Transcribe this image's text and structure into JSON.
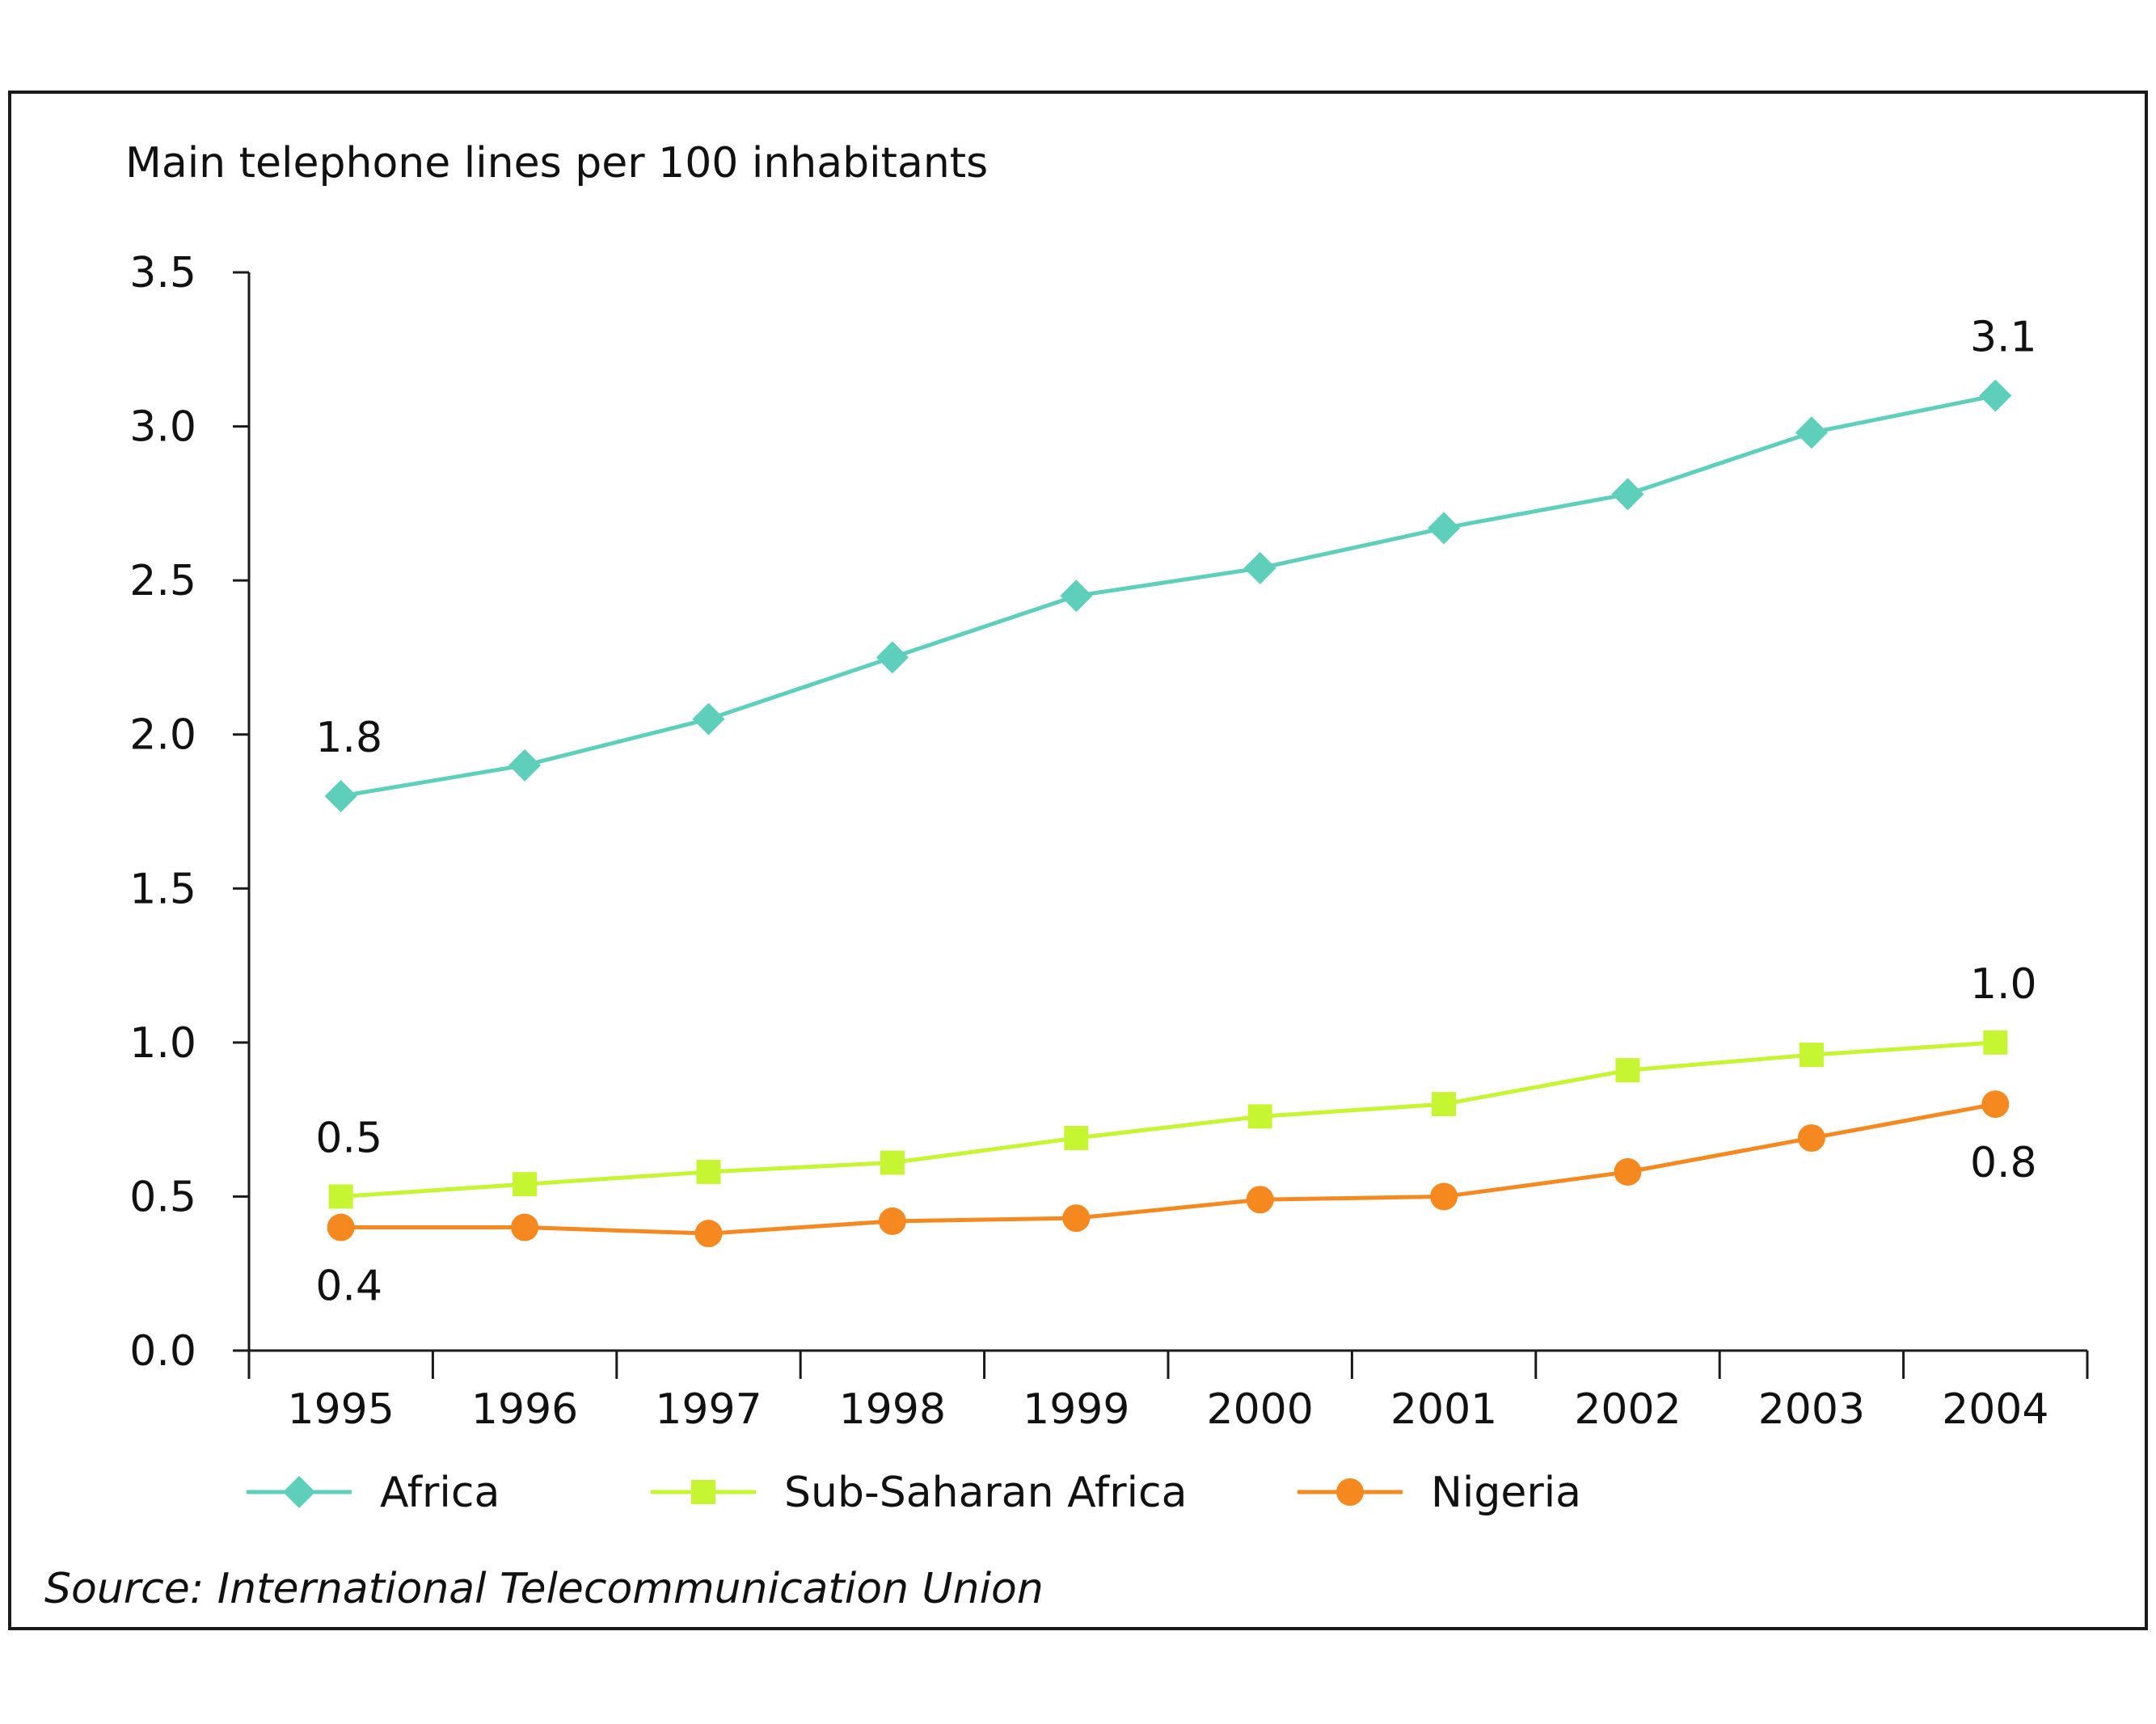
{
  "chart_data": {
    "type": "line",
    "ylabel": "Main telephone lines per 100 inhabitants",
    "source": "Source: International Telecommunication Union",
    "categories": [
      "1995",
      "1996",
      "1997",
      "1998",
      "1999",
      "2000",
      "2001",
      "2002",
      "2003",
      "2004"
    ],
    "ylim": [
      0,
      3.5
    ],
    "yticks": [
      "0.0",
      "0.5",
      "1.0",
      "1.5",
      "2.0",
      "2.5",
      "3.0",
      "3.5"
    ],
    "grid": false,
    "legend": "bottom",
    "series": [
      {
        "name": "Africa",
        "color": "#5ecfbb",
        "marker": "diamond",
        "values": [
          1.8,
          1.9,
          2.05,
          2.25,
          2.45,
          2.54,
          2.67,
          2.78,
          2.98,
          3.1
        ]
      },
      {
        "name": "Sub-Saharan Africa",
        "color": "#c6f532",
        "marker": "square",
        "values": [
          0.5,
          0.54,
          0.58,
          0.61,
          0.69,
          0.76,
          0.8,
          0.91,
          0.96,
          1.0
        ]
      },
      {
        "name": "Nigeria",
        "color": "#f5891f",
        "marker": "circle",
        "values": [
          0.4,
          0.4,
          0.38,
          0.42,
          0.43,
          0.49,
          0.5,
          0.58,
          0.69,
          0.8
        ]
      }
    ],
    "annotations": [
      {
        "text": "1.8",
        "series": 0,
        "index": 0,
        "position": "above"
      },
      {
        "text": "3.1",
        "series": 0,
        "index": 9,
        "position": "above"
      },
      {
        "text": "0.5",
        "series": 1,
        "index": 0,
        "position": "above"
      },
      {
        "text": "1.0",
        "series": 1,
        "index": 9,
        "position": "above"
      },
      {
        "text": "0.4",
        "series": 2,
        "index": 0,
        "position": "below"
      },
      {
        "text": "0.8",
        "series": 2,
        "index": 9,
        "position": "below"
      }
    ]
  }
}
